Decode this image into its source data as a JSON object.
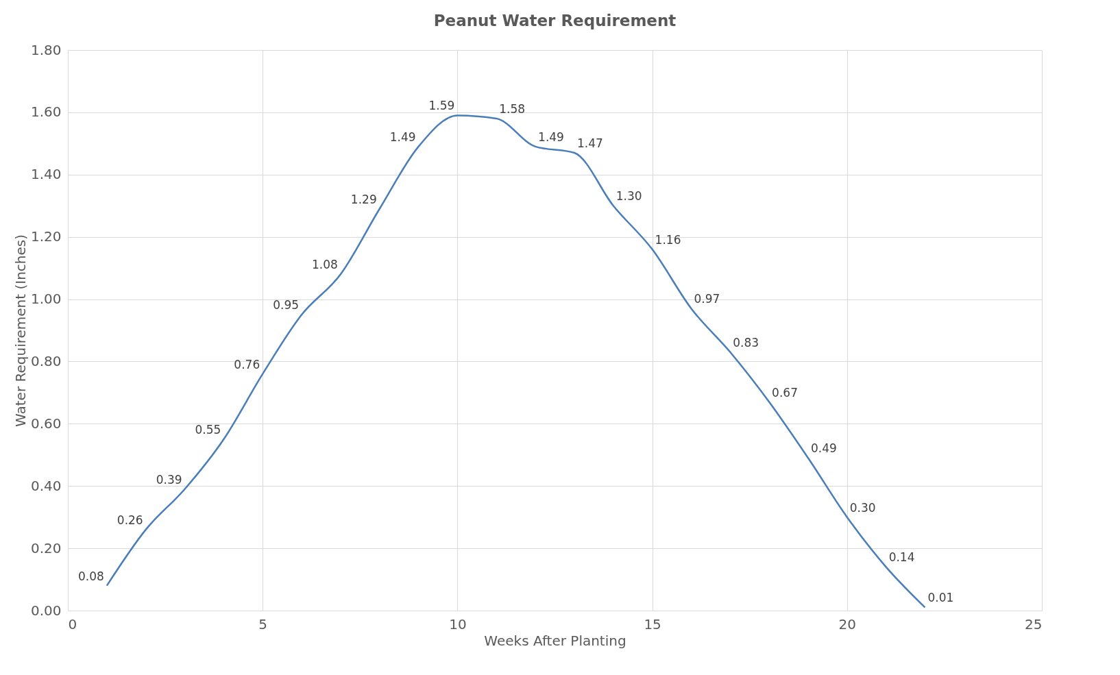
{
  "chart_data": {
    "type": "line",
    "title": "Peanut Water Requirement",
    "xlabel": "Weeks After Planting",
    "ylabel": "Water Requirement (Inches)",
    "x": [
      1,
      2,
      3,
      4,
      5,
      6,
      7,
      8,
      9,
      10,
      11,
      12,
      13,
      14,
      15,
      16,
      17,
      18,
      19,
      20,
      21,
      22
    ],
    "series": [
      {
        "color": "#4a7ebb",
        "values": [
          0.08,
          0.26,
          0.39,
          0.55,
          0.76,
          0.95,
          1.08,
          1.29,
          1.49,
          1.59,
          1.58,
          1.49,
          1.47,
          1.3,
          1.16,
          0.97,
          0.83,
          0.67,
          0.49,
          0.3,
          0.14,
          0.01
        ],
        "value_labels": [
          "0.08",
          "0.26",
          "0.39",
          "0.55",
          "0.76",
          "0.95",
          "1.08",
          "1.29",
          "1.49",
          "1.59",
          "1.58",
          "1.49",
          "1.47",
          "1.30",
          "1.16",
          "0.97",
          "0.83",
          "0.67",
          "0.49",
          "0.30",
          "0.14",
          "0.01"
        ]
      }
    ],
    "xlim": [
      0,
      25
    ],
    "xticks": [
      0,
      5,
      10,
      15,
      20,
      25
    ],
    "ylim": [
      0,
      1.8
    ],
    "yticks": [
      {
        "value": 0,
        "label": "0.00"
      },
      {
        "value": 0.2,
        "label": "0.20"
      },
      {
        "value": 0.4,
        "label": "0.40"
      },
      {
        "value": 0.6,
        "label": "0.60"
      },
      {
        "value": 0.8,
        "label": "0.80"
      },
      {
        "value": 1.0,
        "label": "1.00"
      },
      {
        "value": 1.2,
        "label": "1.20"
      },
      {
        "value": 1.4,
        "label": "1.40"
      },
      {
        "value": 1.6,
        "label": "1.60"
      },
      {
        "value": 1.8,
        "label": "1.80"
      }
    ],
    "grid": true,
    "marker": "none",
    "line_style": "solid"
  }
}
